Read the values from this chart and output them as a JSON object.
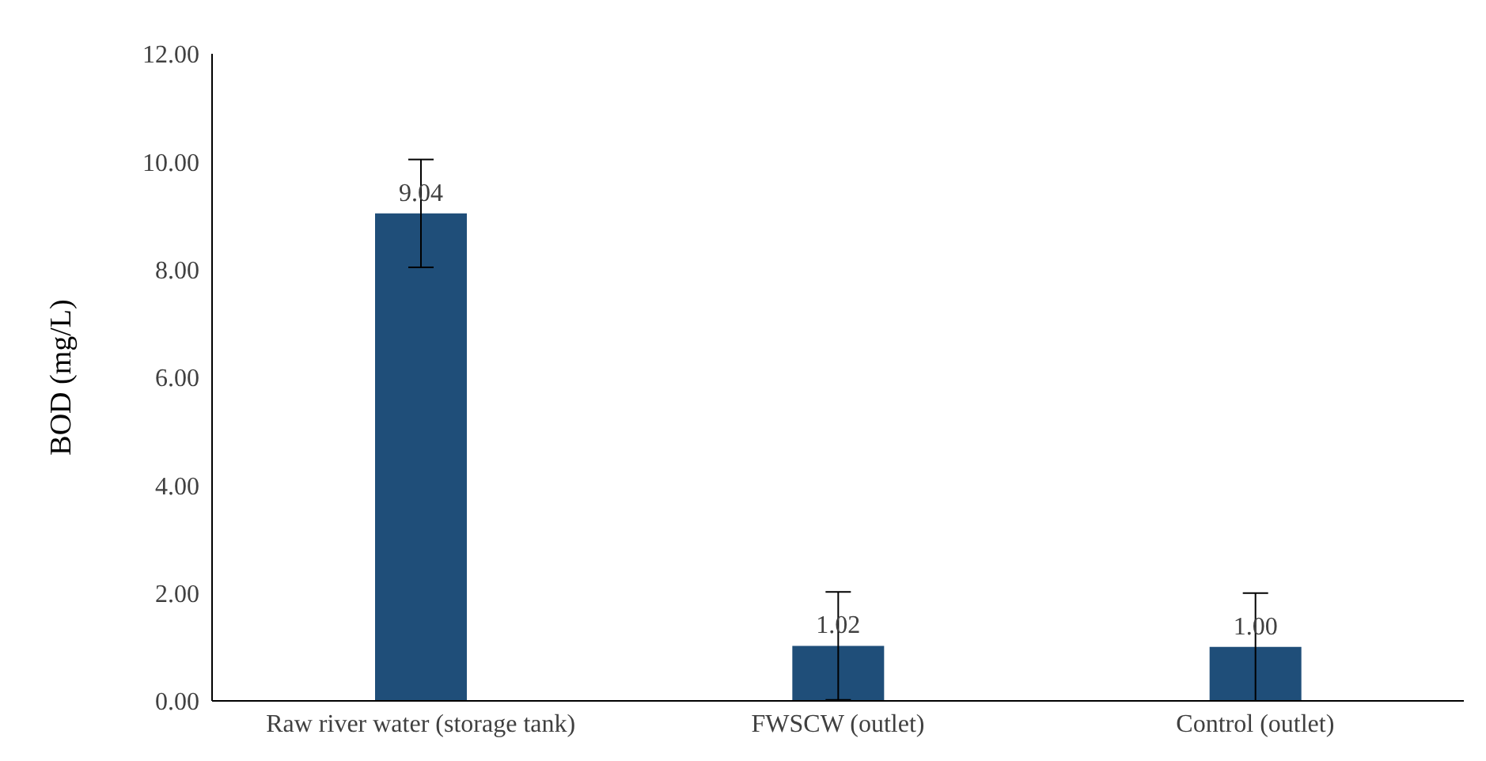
{
  "chart_data": {
    "type": "bar",
    "ylabel": "BOD (mg/L)",
    "categories": [
      "Raw river water (storage tank)",
      "FWSCW (outlet)",
      "Control (outlet)"
    ],
    "values": [
      9.04,
      1.02,
      1.0
    ],
    "errors": [
      1,
      1,
      1
    ],
    "value_labels": [
      "9.04",
      "1.02",
      "1.00"
    ],
    "color": "#1f4e79",
    "ylim": [
      0,
      12
    ],
    "yticks": [
      {
        "value": 0,
        "label": "0.00"
      },
      {
        "value": 2,
        "label": "2.00"
      },
      {
        "value": 4,
        "label": "4.00"
      },
      {
        "value": 6,
        "label": "6.00"
      },
      {
        "value": 8,
        "label": "8.00"
      },
      {
        "value": 10,
        "label": "10.00"
      },
      {
        "value": 12,
        "label": "12.00"
      }
    ],
    "grid": false,
    "legend": false
  }
}
